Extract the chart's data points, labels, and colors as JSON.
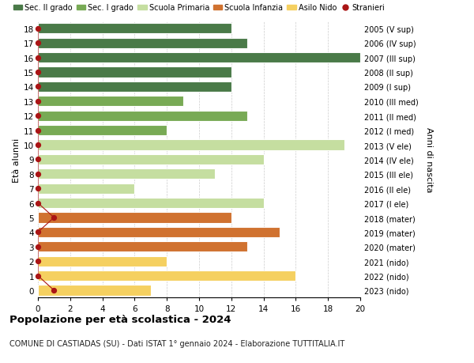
{
  "ages": [
    18,
    17,
    16,
    15,
    14,
    13,
    12,
    11,
    10,
    9,
    8,
    7,
    6,
    5,
    4,
    3,
    2,
    1,
    0
  ],
  "values": [
    12,
    13,
    20,
    12,
    12,
    9,
    13,
    8,
    19,
    14,
    11,
    6,
    14,
    12,
    15,
    13,
    8,
    16,
    7
  ],
  "stranieri_values": [
    0,
    0,
    0,
    0,
    0,
    0,
    0,
    0,
    0,
    0,
    0,
    0,
    0,
    1,
    0,
    0,
    0,
    0,
    1
  ],
  "right_labels": [
    "2005 (V sup)",
    "2006 (IV sup)",
    "2007 (III sup)",
    "2008 (II sup)",
    "2009 (I sup)",
    "2010 (III med)",
    "2011 (II med)",
    "2012 (I med)",
    "2013 (V ele)",
    "2014 (IV ele)",
    "2015 (III ele)",
    "2016 (II ele)",
    "2017 (I ele)",
    "2018 (mater)",
    "2019 (mater)",
    "2020 (mater)",
    "2021 (nido)",
    "2022 (nido)",
    "2023 (nido)"
  ],
  "bar_colors": [
    "#4a7a48",
    "#4a7a48",
    "#4a7a48",
    "#4a7a48",
    "#4a7a48",
    "#78aa55",
    "#78aa55",
    "#78aa55",
    "#c5dea0",
    "#c5dea0",
    "#c5dea0",
    "#c5dea0",
    "#c5dea0",
    "#d07230",
    "#d07230",
    "#d07230",
    "#f5d060",
    "#f5d060",
    "#f5d060"
  ],
  "stranieri_color": "#aa1515",
  "title": "Popolazione per età scolastica - 2024",
  "subtitle": "COMUNE DI CASTIADAS (SU) - Dati ISTAT 1° gennaio 2024 - Elaborazione TUTTITALIA.IT",
  "ylabel": "Età alunni",
  "right_ylabel": "Anni di nascita",
  "xlim_max": 20,
  "xticks": [
    0,
    2,
    4,
    6,
    8,
    10,
    12,
    14,
    16,
    18,
    20
  ],
  "legend_labels": [
    "Sec. II grado",
    "Sec. I grado",
    "Scuola Primaria",
    "Scuola Infanzia",
    "Asilo Nido",
    "Stranieri"
  ],
  "legend_colors": [
    "#4a7a48",
    "#78aa55",
    "#c5dea0",
    "#d07230",
    "#f5d060",
    "#aa1515"
  ],
  "bg_color": "#ffffff",
  "grid_color": "#cccccc"
}
